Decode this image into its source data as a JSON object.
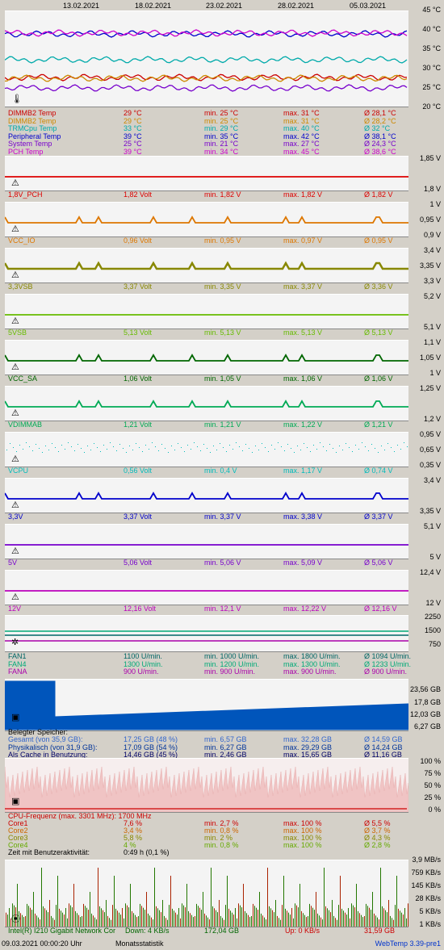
{
  "dates": [
    "13.02.2021",
    "18.02.2021",
    "23.02.2021",
    "28.02.2021",
    "05.03.2021"
  ],
  "temp": {
    "axis": [
      "45 °C",
      "40 °C",
      "35 °C",
      "30 °C",
      "25 °C",
      "20 °C"
    ],
    "rows": [
      {
        "name": "DIMMB2 Temp",
        "cur": "29 °C",
        "min": "min. 25 °C",
        "max": "max. 31 °C",
        "avg": "Ø 28,1 °C",
        "color": "#cc0000"
      },
      {
        "name": "DIMMB2 Temp",
        "cur": "29 °C",
        "min": "min. 25 °C",
        "max": "max. 31 °C",
        "avg": "Ø 28,2 °C",
        "color": "#cc8800"
      },
      {
        "name": "TRMCpu Temp",
        "cur": "33 °C",
        "min": "min. 29 °C",
        "max": "max. 40 °C",
        "avg": "Ø 32 °C",
        "color": "#00aaaa"
      },
      {
        "name": "Peripheral Temp",
        "cur": "39 °C",
        "min": "min. 35 °C",
        "max": "max. 42 °C",
        "avg": "Ø 38,1 °C",
        "color": "#0000cc"
      },
      {
        "name": "System Temp",
        "cur": "25 °C",
        "min": "min. 21 °C",
        "max": "max. 27 °C",
        "avg": "Ø 24,3 °C",
        "color": "#7700cc"
      },
      {
        "name": "PCH Temp",
        "cur": "39 °C",
        "min": "min. 34 °C",
        "max": "max. 45 °C",
        "avg": "Ø 38,6 °C",
        "color": "#cc00cc"
      }
    ]
  },
  "volts": [
    {
      "axis_top": "1,85 V",
      "axis_bot": "1,8 V",
      "name": "1,8V_PCH",
      "cur": "1,82 Volt",
      "min": "min. 1,82 V",
      "max": "max. 1,82 V",
      "avg": "Ø 1,82 V",
      "color": "#dd0000"
    },
    {
      "axis_top": "1 V",
      "axis_mid": "0,95 V",
      "axis_bot": "0,9 V",
      "name": "VCC_IO",
      "cur": "0,96 Volt",
      "min": "min. 0,95 V",
      "max": "max. 0,97 V",
      "avg": "Ø 0,95 V",
      "color": "#dd7700"
    },
    {
      "axis_top": "3,4 V",
      "axis_mid": "3,35 V",
      "axis_bot": "3,3 V",
      "name": "3,3VSB",
      "cur": "3,37 Volt",
      "min": "min. 3,35 V",
      "max": "max. 3,37 V",
      "avg": "Ø 3,36 V",
      "color": "#888800"
    },
    {
      "axis_top": "5,2 V",
      "axis_bot": "5,1 V",
      "name": "5VSB",
      "cur": "5,13 Volt",
      "min": "min. 5,13 V",
      "max": "max. 5,13 V",
      "avg": "Ø 5,13 V",
      "color": "#66bb00"
    },
    {
      "axis_top": "1,1 V",
      "axis_mid": "1,05 V",
      "axis_bot": "1 V",
      "name": "VCC_SA",
      "cur": "1,06 Volt",
      "min": "min. 1,05 V",
      "max": "max. 1,06 V",
      "avg": "Ø 1,06 V",
      "color": "#006600"
    },
    {
      "axis_top": "1,25 V",
      "axis_bot": "1,2 V",
      "name": "VDIMMAB",
      "cur": "1,21 Volt",
      "min": "min. 1,21 V",
      "max": "max. 1,22 V",
      "avg": "Ø 1,21 V",
      "color": "#00aa55"
    },
    {
      "axis_top": "0,95 V",
      "axis_mid": "0,65 V",
      "axis_bot": "0,35 V",
      "name": "VCPU",
      "cur": "0,56 Volt",
      "min": "min. 0,4 V",
      "max": "max. 1,17 V",
      "avg": "Ø 0,74 V",
      "color": "#00bbbb"
    },
    {
      "axis_top": "3,4 V",
      "axis_bot": "3,35 V",
      "name": "3,3V",
      "cur": "3,37 Volt",
      "min": "min. 3,37 V",
      "max": "max. 3,38 V",
      "avg": "Ø 3,37 V",
      "color": "#0000cc"
    },
    {
      "axis_top": "5,1 V",
      "axis_bot": "5 V",
      "name": "5V",
      "cur": "5,06 Volt",
      "min": "min. 5,06 V",
      "max": "max. 5,09 V",
      "avg": "Ø 5,06 V",
      "color": "#7700cc"
    },
    {
      "axis_top": "12,4 V",
      "axis_bot": "12 V",
      "name": "12V",
      "cur": "12,16 Volt",
      "min": "min. 12,1 V",
      "max": "max. 12,22 V",
      "avg": "Ø 12,16 V",
      "color": "#bb00bb"
    }
  ],
  "fans": {
    "axis": [
      "2250",
      "1500",
      "750"
    ],
    "rows": [
      {
        "name": "FAN1",
        "cur": "1100 U/min.",
        "min": "min. 1000 U/min.",
        "max": "max. 1800 U/min.",
        "avg": "Ø 1094 U/min.",
        "color": "#006666"
      },
      {
        "name": "FAN4",
        "cur": "1300 U/min.",
        "min": "min. 1200 U/min.",
        "max": "max. 1300 U/min.",
        "avg": "Ø 1233 U/min.",
        "color": "#00aa77"
      },
      {
        "name": "FANA",
        "cur": "900 U/min.",
        "min": "min. 900 U/min.",
        "max": "max. 900 U/min.",
        "avg": "Ø 900 U/min.",
        "color": "#aa00aa"
      }
    ]
  },
  "mem": {
    "axis": [
      "23,56 GB",
      "17,8 GB",
      "12,03 GB",
      "6,27 GB"
    ],
    "title": "Belegter Speicher:",
    "rows": [
      {
        "name": "Gesamt (von 35,9 GB):",
        "cur": "17,25 GB (48 %)",
        "min": "min. 6,57 GB",
        "max": "max. 32,28 GB",
        "avg": "Ø 14,59 GB",
        "color": "#3366cc"
      },
      {
        "name": "Physikalisch (von 31,9 GB):",
        "cur": "17,09 GB (54 %)",
        "min": "min. 6,27 GB",
        "max": "max. 29,29 GB",
        "avg": "Ø 14,24 GB",
        "color": "#003399"
      },
      {
        "name": "Als Cache in Benutzung:",
        "cur": "14,46 GB (45 %)",
        "min": "min. 2,46 GB",
        "max": "max. 15,65 GB",
        "avg": "Ø 11,16 GB",
        "color": "#000066"
      }
    ]
  },
  "cpu": {
    "axis": [
      "100 %",
      "75 %",
      "50 %",
      "25 %",
      "0 %"
    ],
    "freq": "CPU-Frequenz (max. 3301 MHz): 1700 MHz",
    "rows": [
      {
        "name": "Core1",
        "cur": "7,6 %",
        "min": "min. 2,7 %",
        "max": "max. 100 %",
        "avg": "Ø 5,5 %",
        "color": "#cc0000"
      },
      {
        "name": "Core2",
        "cur": "3,4 %",
        "min": "min. 0,8 %",
        "max": "max. 100 %",
        "avg": "Ø 3,7 %",
        "color": "#cc6600"
      },
      {
        "name": "Core3",
        "cur": "5,8 %",
        "min": "min. 2 %",
        "max": "max. 100 %",
        "avg": "Ø 4,3 %",
        "color": "#888800"
      },
      {
        "name": "Core4",
        "cur": "4 %",
        "min": "min. 0,8 %",
        "max": "max. 100 %",
        "avg": "Ø 2,8 %",
        "color": "#66aa00"
      }
    ],
    "activity_label": "Zeit mit Benutzeraktivität:",
    "activity_value": "0:49 h (0,1 %)"
  },
  "net": {
    "axis": [
      "3,9 MB/s",
      "759 KB/s",
      "145 KB/s",
      "28 KB/s",
      "5 KB/s",
      "1 KB/s"
    ],
    "name": "Intel(R) I210 Gigabit Network Cor",
    "down": "Down: 4 KB/s",
    "down_total": "172,04 GB",
    "up": "Up: 0 KB/s",
    "up_total": "31,59 GB"
  },
  "footer": {
    "timestamp": "09.03.2021 00:00:20 Uhr",
    "mode": "Monatsstatistik",
    "version": "WebTemp 3.39-pre1"
  }
}
